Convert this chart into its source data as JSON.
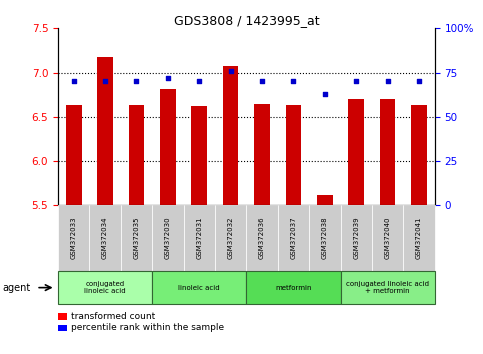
{
  "title": "GDS3808 / 1423995_at",
  "samples": [
    "GSM372033",
    "GSM372034",
    "GSM372035",
    "GSM372030",
    "GSM372031",
    "GSM372032",
    "GSM372036",
    "GSM372037",
    "GSM372038",
    "GSM372039",
    "GSM372040",
    "GSM372041"
  ],
  "transformed_counts": [
    6.63,
    7.18,
    6.63,
    6.82,
    6.62,
    7.07,
    6.65,
    6.63,
    5.62,
    6.7,
    6.7,
    6.63
  ],
  "percentile_ranks": [
    70,
    70,
    70,
    72,
    70,
    76,
    70,
    70,
    63,
    70,
    70,
    70
  ],
  "ylim_left": [
    5.5,
    7.5
  ],
  "ylim_right": [
    0,
    100
  ],
  "yticks_left": [
    5.5,
    6.0,
    6.5,
    7.0,
    7.5
  ],
  "yticks_right": [
    0,
    25,
    50,
    75,
    100
  ],
  "ytick_labels_right": [
    "0",
    "25",
    "50",
    "75",
    "100%"
  ],
  "bar_color": "#cc0000",
  "dot_color": "#0000cc",
  "agent_groups": [
    {
      "label": "conjugated\nlinoleic acid",
      "start": 0,
      "end": 3,
      "color": "#aaffaa"
    },
    {
      "label": "linoleic acid",
      "start": 3,
      "end": 6,
      "color": "#77ee77"
    },
    {
      "label": "metformin",
      "start": 6,
      "end": 9,
      "color": "#55dd55"
    },
    {
      "label": "conjugated linoleic acid\n+ metformin",
      "start": 9,
      "end": 12,
      "color": "#88ee88"
    }
  ],
  "legend_bar_label": "transformed count",
  "legend_dot_label": "percentile rank within the sample",
  "agent_label": "agent",
  "bar_width": 0.5,
  "grid_yticks": [
    6.0,
    6.5,
    7.0
  ]
}
